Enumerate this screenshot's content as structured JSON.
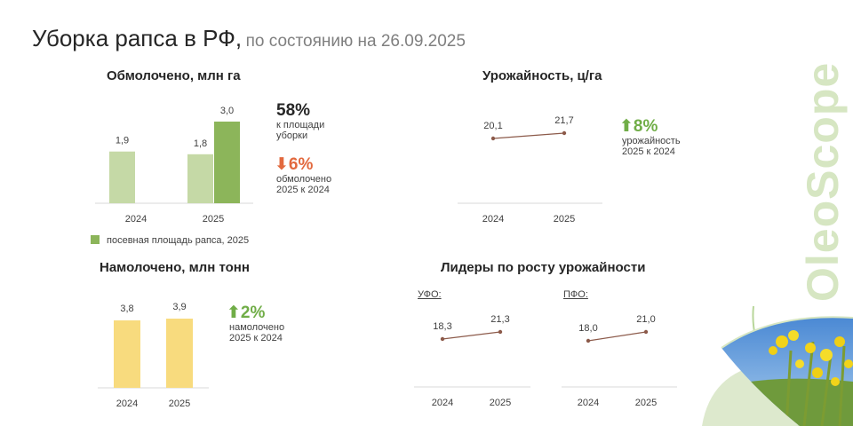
{
  "header": {
    "title": "Уборка рапса в РФ,",
    "subtitle": "по состоянию на 26.09.2025"
  },
  "brand": {
    "name": "OleoScope",
    "color": "#d6e6c2"
  },
  "colors": {
    "bar_light_green": "#c5d9a6",
    "bar_green": "#8cb55a",
    "bar_yellow": "#f8db7e",
    "line": "#8c5a4a",
    "up": "#70ad47",
    "down": "#e2693e"
  },
  "panels": {
    "threshed": {
      "title": "Обмолочено, млн га",
      "stat1": {
        "value": "58%",
        "line1": "к площади",
        "line2": "уборки"
      },
      "stat2": {
        "arrow": "⬇",
        "value": "6%",
        "line1": "обмолочено",
        "line2": "2025  к 2024"
      },
      "legend": "посевная площадь рапса, 2025"
    },
    "yield": {
      "title": "Урожайность, ц/га",
      "stat": {
        "arrow": "⬆",
        "value": "8%",
        "line1": "урожайность",
        "line2": "2025  к 2024"
      }
    },
    "harvested": {
      "title": "Намолочено, млн тонн",
      "stat": {
        "arrow": "⬆",
        "value": "2%",
        "line1": "намолочено",
        "line2": "2025  к 2024"
      }
    },
    "leaders": {
      "title": "Лидеры по росту урожайности",
      "left_region": "УФО:",
      "right_region": "ПФО:"
    }
  },
  "chart_data": [
    {
      "id": "threshed",
      "type": "bar",
      "title": "Обмолочено, млн га",
      "categories": [
        "2024",
        "2025"
      ],
      "series": [
        {
          "name": "обмолочено",
          "values": [
            1.9,
            1.8
          ],
          "labels": [
            "1,9",
            "1,8"
          ]
        },
        {
          "name": "посевная площадь рапса, 2025",
          "values": [
            null,
            3.0
          ],
          "labels": [
            "",
            "3,0"
          ]
        }
      ],
      "ylim": [
        0,
        3.0
      ]
    },
    {
      "id": "yield",
      "type": "line",
      "title": "Урожайность, ц/га",
      "categories": [
        "2024",
        "2025"
      ],
      "values": [
        20.1,
        21.7
      ],
      "labels": [
        "20,1",
        "21,7"
      ]
    },
    {
      "id": "harvested",
      "type": "bar",
      "title": "Намолочено, млн тонн",
      "categories": [
        "2024",
        "2025"
      ],
      "values": [
        3.8,
        3.9
      ],
      "labels": [
        "3,8",
        "3,9"
      ],
      "ylim": [
        0,
        3.9
      ]
    },
    {
      "id": "ufo",
      "type": "line",
      "title": "УФО:",
      "categories": [
        "2024",
        "2025"
      ],
      "values": [
        18.3,
        21.3
      ],
      "labels": [
        "18,3",
        "21,3"
      ]
    },
    {
      "id": "pfo",
      "type": "line",
      "title": "ПФО:",
      "categories": [
        "2024",
        "2025"
      ],
      "values": [
        18.0,
        21.0
      ],
      "labels": [
        "18,0",
        "21,0"
      ]
    }
  ]
}
